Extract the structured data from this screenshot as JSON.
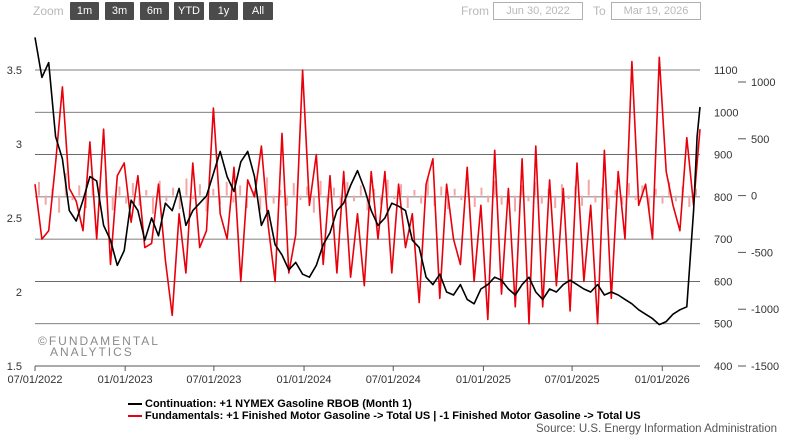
{
  "toolbar": {
    "zoom_label": "Zoom",
    "buttons": [
      "1m",
      "3m",
      "6m",
      "YTD",
      "1y",
      "All"
    ],
    "from_label": "From",
    "from_value": "Jun 30, 2022",
    "to_label": "To",
    "to_value": "Mar 19, 2026"
  },
  "watermark": {
    "line1": "FUNDAMENTAL",
    "line2": "ANALYTICS",
    "symbol": "©"
  },
  "colors": {
    "continuation": "#000000",
    "fundamentals": "#e8000b",
    "bars": "#f4a6a6",
    "grid": "#555555"
  },
  "legend": {
    "continuation": "Continuation: +1 NYMEX Gasoline RBOB (Month 1)",
    "fundamentals": "Fundamentals: +1 Finished Motor Gasoline -> Total US | -1 Finished Motor Gasoline -> Total US"
  },
  "source": "Source: U.S. Energy Information Administration",
  "chart_data": {
    "type": "line",
    "title": "",
    "x_ticks": [
      "07/01/2022",
      "01/01/2023",
      "07/01/2023",
      "01/01/2024",
      "07/01/2024",
      "01/01/2025",
      "07/01/2025",
      "01/01/2026"
    ],
    "xlim": [
      "2022-07-01",
      "2026-03-19"
    ],
    "axes": {
      "left": {
        "ticks": [
          "1.5",
          "2",
          "2.5",
          "3",
          "3.5"
        ],
        "range": [
          1.5,
          3.5
        ]
      },
      "right_inner": {
        "ticks": [
          "400",
          "500",
          "600",
          "700",
          "800",
          "900",
          "1000",
          "1100"
        ],
        "range": [
          400,
          1100
        ]
      },
      "right_outer": {
        "ticks": [
          "-1500",
          "-1000",
          "-500",
          "0",
          "500",
          "1000"
        ],
        "range": [
          -1500,
          1000
        ]
      }
    },
    "grid": true,
    "series": [
      {
        "name": "Continuation: +1 NYMEX Gasoline RBOB (Month 1)",
        "axis": "left",
        "x": [
          "2022-07-01",
          "2022-07-15",
          "2022-07-29",
          "2022-08-12",
          "2022-08-26",
          "2022-09-09",
          "2022-09-23",
          "2022-10-07",
          "2022-10-21",
          "2022-11-04",
          "2022-11-18",
          "2022-12-02",
          "2022-12-16",
          "2022-12-30",
          "2023-01-13",
          "2023-01-27",
          "2023-02-10",
          "2023-02-24",
          "2023-03-10",
          "2023-03-24",
          "2023-04-07",
          "2023-04-21",
          "2023-05-05",
          "2023-05-19",
          "2023-06-02",
          "2023-06-16",
          "2023-06-30",
          "2023-07-14",
          "2023-07-28",
          "2023-08-11",
          "2023-08-25",
          "2023-09-08",
          "2023-09-22",
          "2023-10-06",
          "2023-10-20",
          "2023-11-03",
          "2023-11-17",
          "2023-12-01",
          "2023-12-15",
          "2023-12-29",
          "2024-01-12",
          "2024-01-26",
          "2024-02-09",
          "2024-02-23",
          "2024-03-08",
          "2024-03-22",
          "2024-04-05",
          "2024-04-19",
          "2024-05-03",
          "2024-05-17",
          "2024-05-31",
          "2024-06-14",
          "2024-06-28",
          "2024-07-12",
          "2024-07-26",
          "2024-08-09",
          "2024-08-23",
          "2024-09-06",
          "2024-09-20",
          "2024-10-04",
          "2024-10-18",
          "2024-11-01",
          "2024-11-15",
          "2024-11-29",
          "2024-12-13",
          "2024-12-27",
          "2025-01-10",
          "2025-01-24",
          "2025-02-07",
          "2025-02-21",
          "2025-03-07",
          "2025-03-21",
          "2025-04-04",
          "2025-04-18",
          "2025-05-02",
          "2025-05-16",
          "2025-05-30",
          "2025-06-13",
          "2025-06-27",
          "2025-07-11",
          "2025-07-25",
          "2025-08-08",
          "2025-08-22",
          "2025-09-05",
          "2025-09-19",
          "2025-10-03",
          "2025-10-17",
          "2025-10-31",
          "2025-11-14",
          "2025-11-28",
          "2025-12-12",
          "2025-12-26",
          "2026-01-09",
          "2026-01-23",
          "2026-02-06",
          "2026-02-20",
          "2026-03-06",
          "2026-03-13",
          "2026-03-19"
        ],
        "values": [
          3.72,
          3.45,
          3.55,
          3.05,
          2.9,
          2.55,
          2.48,
          2.62,
          2.78,
          2.75,
          2.45,
          2.35,
          2.18,
          2.28,
          2.62,
          2.55,
          2.35,
          2.5,
          2.38,
          2.6,
          2.55,
          2.7,
          2.45,
          2.55,
          2.6,
          2.65,
          2.8,
          2.95,
          2.78,
          2.68,
          2.88,
          2.95,
          2.78,
          2.45,
          2.55,
          2.32,
          2.25,
          2.15,
          2.2,
          2.12,
          2.1,
          2.18,
          2.32,
          2.4,
          2.55,
          2.6,
          2.72,
          2.82,
          2.7,
          2.55,
          2.45,
          2.5,
          2.6,
          2.58,
          2.55,
          2.35,
          2.3,
          2.1,
          2.05,
          2.12,
          2.0,
          1.98,
          2.05,
          1.95,
          1.92,
          2.02,
          2.05,
          2.1,
          2.08,
          2.02,
          1.98,
          2.05,
          2.1,
          2.0,
          1.95,
          2.02,
          2.0,
          2.05,
          2.08,
          2.05,
          2.02,
          2.0,
          2.05,
          1.98,
          2.0,
          1.98,
          1.95,
          1.92,
          1.88,
          1.85,
          1.82,
          1.78,
          1.8,
          1.85,
          1.88,
          1.9,
          2.55,
          3.05,
          3.25
        ]
      },
      {
        "name": "Fundamentals: +1 Finished Motor Gasoline -> Total US | -1 Finished Motor Gasoline -> Total US",
        "axis": "right_inner",
        "x": [
          "2022-07-01",
          "2022-07-15",
          "2022-07-29",
          "2022-08-12",
          "2022-08-26",
          "2022-09-09",
          "2022-09-23",
          "2022-10-07",
          "2022-10-21",
          "2022-11-04",
          "2022-11-18",
          "2022-12-02",
          "2022-12-16",
          "2022-12-30",
          "2023-01-13",
          "2023-01-27",
          "2023-02-10",
          "2023-02-24",
          "2023-03-10",
          "2023-03-24",
          "2023-04-07",
          "2023-04-21",
          "2023-05-05",
          "2023-05-19",
          "2023-06-02",
          "2023-06-16",
          "2023-06-30",
          "2023-07-14",
          "2023-07-28",
          "2023-08-11",
          "2023-08-25",
          "2023-09-08",
          "2023-09-22",
          "2023-10-06",
          "2023-10-20",
          "2023-11-03",
          "2023-11-17",
          "2023-12-01",
          "2023-12-15",
          "2023-12-29",
          "2024-01-12",
          "2024-01-26",
          "2024-02-09",
          "2024-02-23",
          "2024-03-08",
          "2024-03-22",
          "2024-04-05",
          "2024-04-19",
          "2024-05-03",
          "2024-05-17",
          "2024-05-31",
          "2024-06-14",
          "2024-06-28",
          "2024-07-12",
          "2024-07-26",
          "2024-08-09",
          "2024-08-23",
          "2024-09-06",
          "2024-09-20",
          "2024-10-04",
          "2024-10-18",
          "2024-11-01",
          "2024-11-15",
          "2024-11-29",
          "2024-12-13",
          "2024-12-27",
          "2025-01-10",
          "2025-01-24",
          "2025-02-07",
          "2025-02-21",
          "2025-03-07",
          "2025-03-21",
          "2025-04-04",
          "2025-04-18",
          "2025-05-02",
          "2025-05-16",
          "2025-05-30",
          "2025-06-13",
          "2025-06-27",
          "2025-07-11",
          "2025-07-25",
          "2025-08-08",
          "2025-08-22",
          "2025-09-05",
          "2025-09-19",
          "2025-10-03",
          "2025-10-17",
          "2025-10-31",
          "2025-11-14",
          "2025-11-28",
          "2025-12-12",
          "2025-12-26",
          "2026-01-09",
          "2026-01-23",
          "2026-02-06",
          "2026-02-20",
          "2026-03-06",
          "2026-03-13",
          "2026-03-19"
        ],
        "values": [
          830,
          700,
          720,
          880,
          1060,
          820,
          790,
          720,
          930,
          700,
          960,
          640,
          850,
          880,
          740,
          850,
          680,
          690,
          830,
          650,
          520,
          760,
          620,
          880,
          680,
          720,
          1010,
          760,
          700,
          870,
          600,
          840,
          800,
          920,
          730,
          600,
          950,
          620,
          710,
          1100,
          780,
          900,
          640,
          850,
          620,
          860,
          610,
          760,
          590,
          860,
          700,
          860,
          620,
          830,
          680,
          760,
          550,
          830,
          890,
          560,
          830,
          700,
          640,
          870,
          600,
          780,
          510,
          910,
          570,
          820,
          540,
          890,
          500,
          920,
          540,
          840,
          590,
          820,
          530,
          880,
          600,
          780,
          500,
          910,
          560,
          860,
          700,
          1120,
          780,
          830,
          700,
          1130,
          860,
          780,
          720,
          940,
          780,
          880,
          960
        ]
      }
    ],
    "bar_series": {
      "axis": "right_outer",
      "type": "bar",
      "values": [
        120,
        -80,
        60,
        -150,
        200,
        -40,
        90,
        -110,
        170,
        -60,
        140,
        -130,
        80,
        -70,
        110,
        -90,
        50,
        -160,
        130,
        -50,
        70,
        -120,
        150,
        -30,
        100,
        -140,
        60,
        -80,
        120,
        -60,
        90,
        -110,
        40,
        -130,
        160,
        -70,
        50,
        -90,
        110,
        -40,
        80,
        -150,
        130,
        -60,
        70,
        -100,
        120,
        -50,
        90,
        -130,
        60,
        -80,
        140,
        -30,
        100,
        -110,
        50,
        -70,
        150,
        -90,
        80,
        -120,
        60,
        -40,
        110,
        -100,
        70,
        -60,
        130,
        -80,
        50,
        -140,
        90,
        -50,
        120,
        -70,
        60,
        -110,
        100,
        -30,
        80,
        -90,
        140,
        -60,
        70,
        -120,
        50,
        -80,
        110,
        -40,
        90,
        -130,
        60,
        -70,
        120,
        -50,
        80,
        -100,
        60
      ]
    }
  }
}
